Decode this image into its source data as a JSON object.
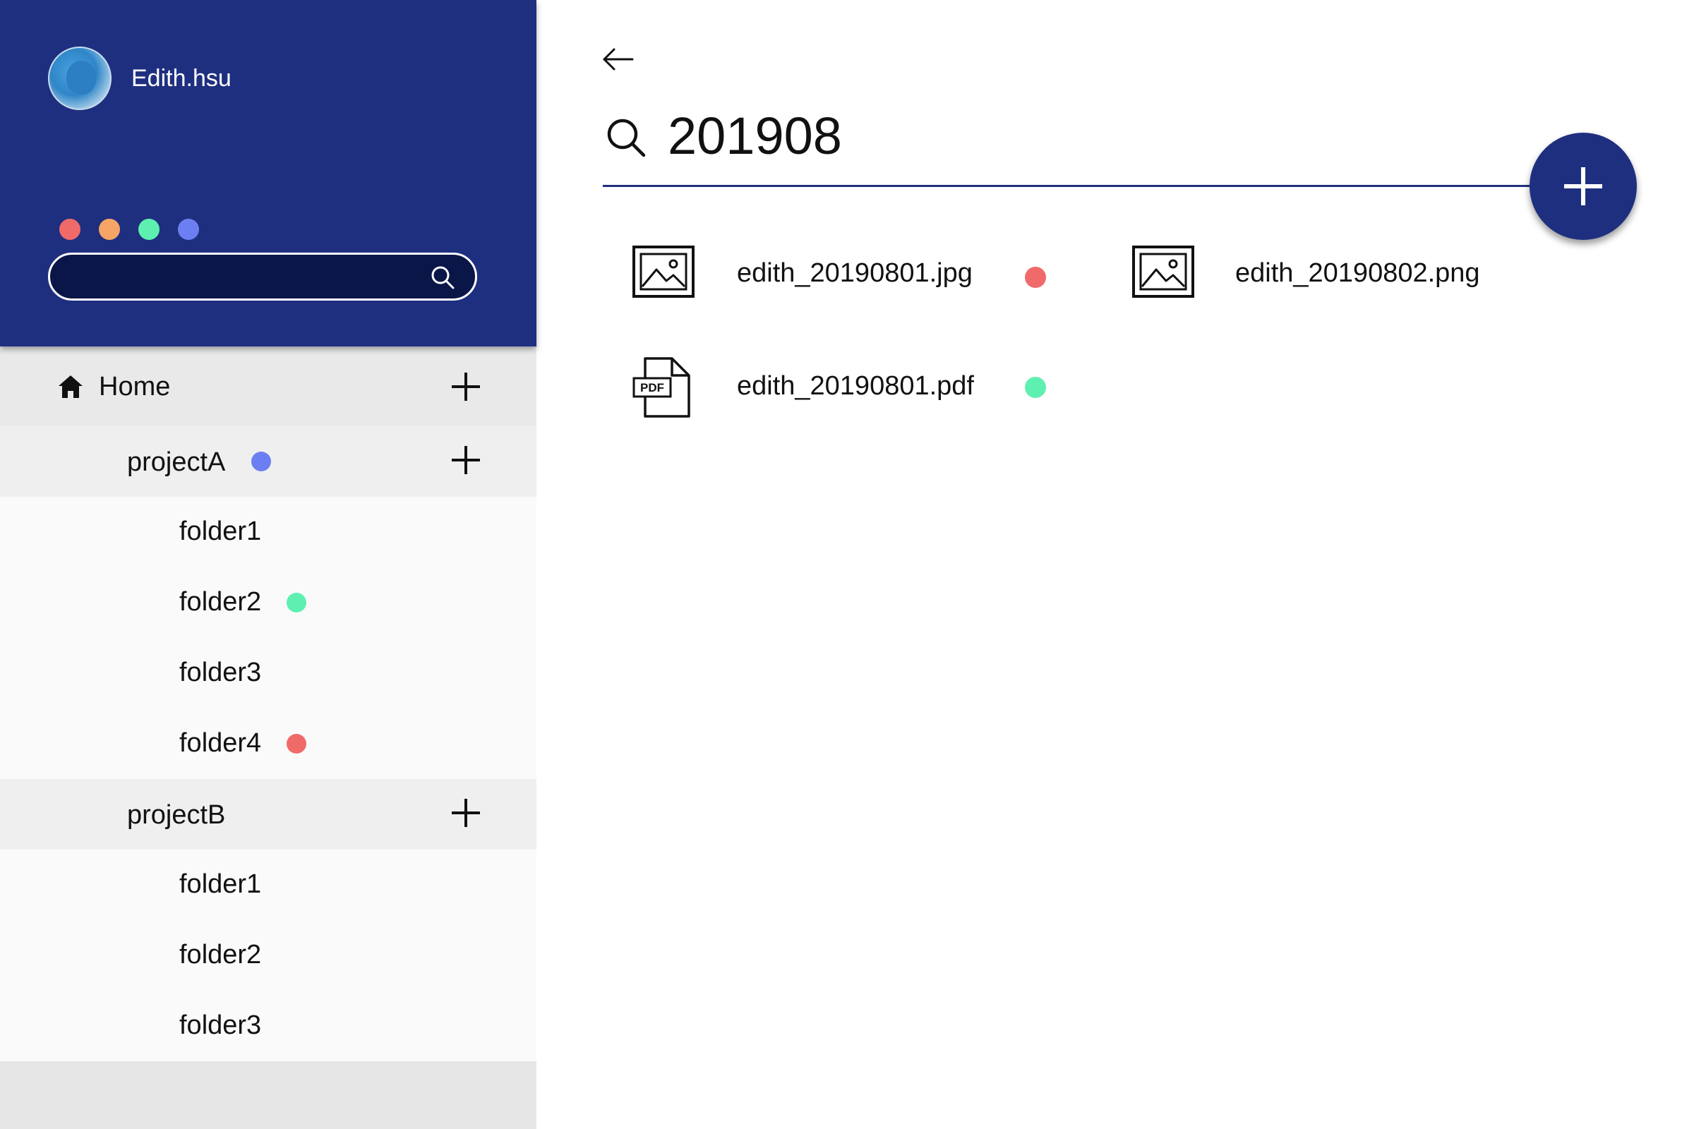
{
  "user": {
    "name": "Edith.hsu"
  },
  "color_tags": [
    "#f06a6a",
    "#f6a566",
    "#5ef0b0",
    "#6c7ff2"
  ],
  "sidebar_search": {
    "value": "",
    "placeholder": ""
  },
  "tree": {
    "home": {
      "label": "Home"
    },
    "projectA": {
      "label": "projectA",
      "tag_color": "#6c7ff2",
      "folders": [
        {
          "label": "folder1",
          "tag_color": null
        },
        {
          "label": "folder2",
          "tag_color": "#5ef0b0"
        },
        {
          "label": "folder3",
          "tag_color": null
        },
        {
          "label": "folder4",
          "tag_color": "#f06a6a"
        }
      ]
    },
    "projectB": {
      "label": "projectB",
      "folders": [
        {
          "label": "folder1"
        },
        {
          "label": "folder2"
        },
        {
          "label": "folder3"
        }
      ]
    }
  },
  "search": {
    "query": "201908"
  },
  "results": [
    {
      "name": "edith_20190801.jpg",
      "icon": "image-file-icon",
      "tag_color": "#f06a6a"
    },
    {
      "name": "edith_20190802.png",
      "icon": "image-file-icon",
      "tag_color": null
    },
    {
      "name": "edith_20190801.pdf",
      "icon": "pdf-file-icon",
      "icon_text": "PDF",
      "tag_color": "#5ef0b0"
    }
  ],
  "colors": {
    "brand": "#1f2f80",
    "panel": "#e6e6e6"
  }
}
